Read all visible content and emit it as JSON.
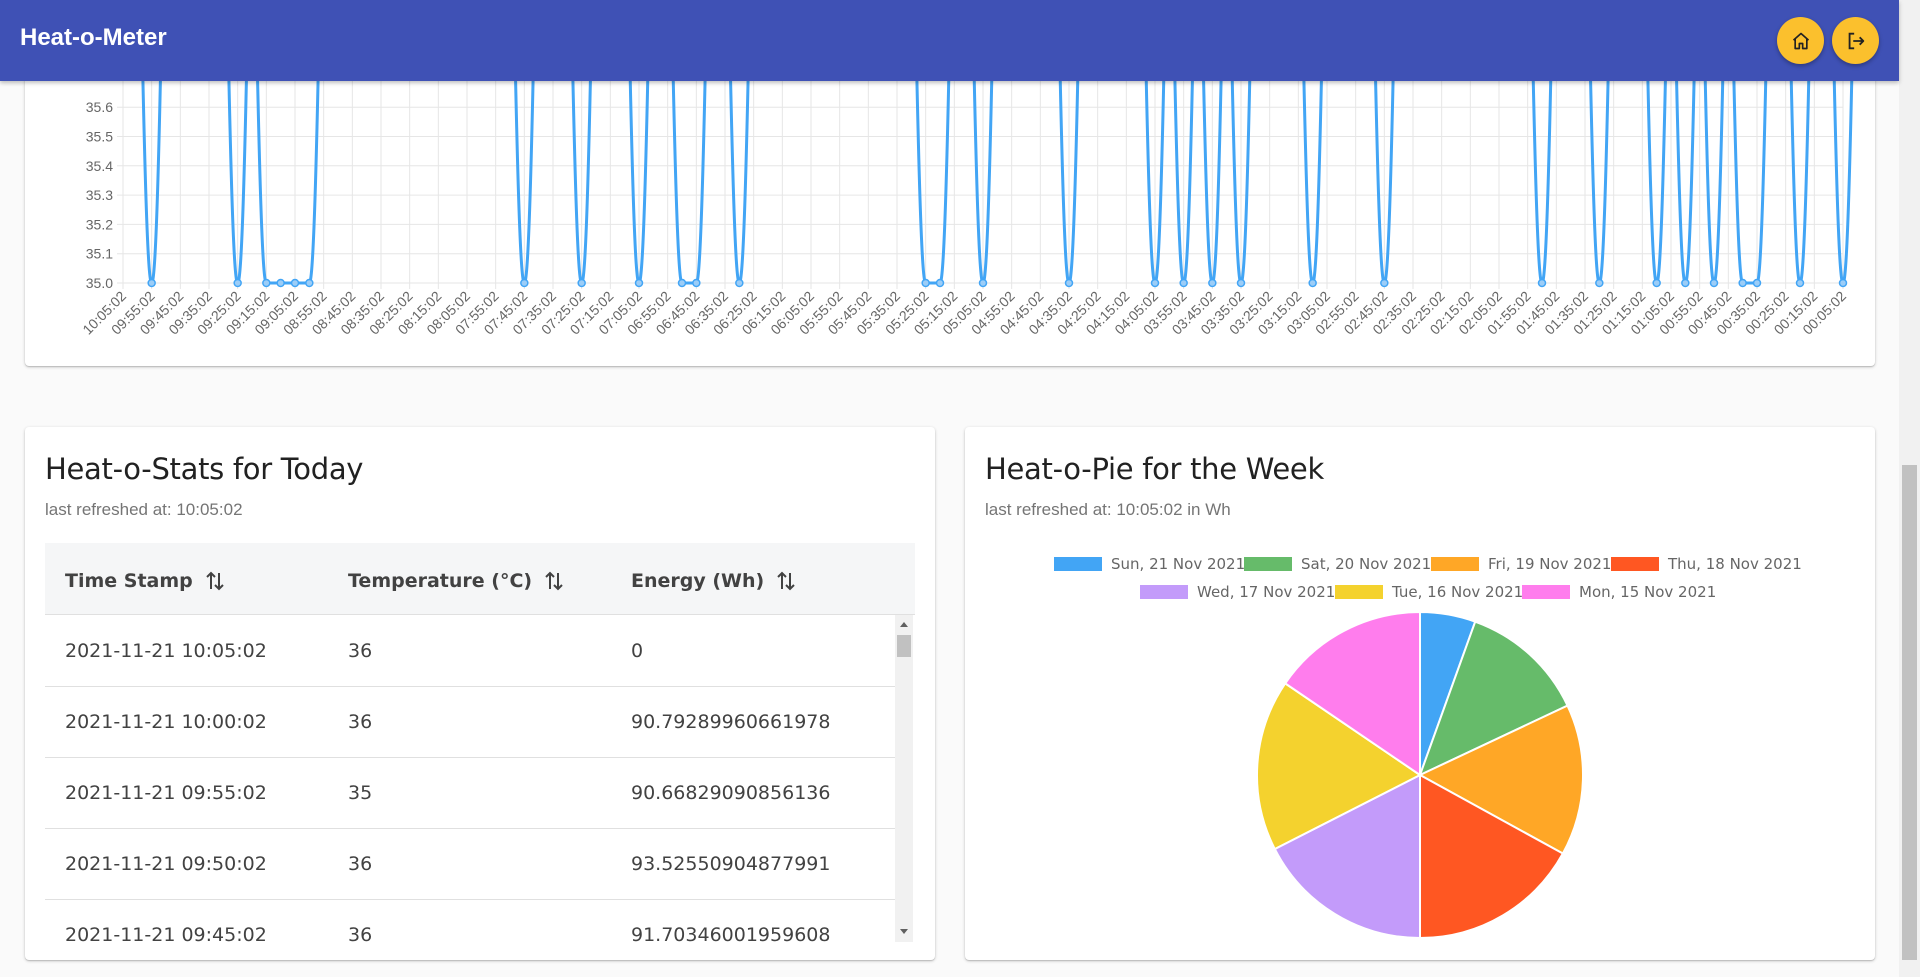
{
  "app": {
    "title": "Heat-o-Meter"
  },
  "toolbar": {
    "home_icon": "home-icon",
    "logout_icon": "logout-icon"
  },
  "line_chart": {
    "chart_data": {
      "type": "line",
      "y_ticks": [
        "35.6",
        "35.5",
        "35.4",
        "35.3",
        "35.2",
        "35.1",
        "35.0"
      ],
      "x_ticks": [
        "10:05:02",
        "09:55:02",
        "09:45:02",
        "09:35:02",
        "09:25:02",
        "09:15:02",
        "09:05:02",
        "08:55:02",
        "08:45:02",
        "08:35:02",
        "08:25:02",
        "08:15:02",
        "08:05:02",
        "07:55:02",
        "07:45:02",
        "07:35:02",
        "07:25:02",
        "07:15:02",
        "07:05:02",
        "06:55:02",
        "06:45:02",
        "06:35:02",
        "06:25:02",
        "06:15:02",
        "06:05:02",
        "05:55:02",
        "05:45:02",
        "05:35:02",
        "05:25:02",
        "05:15:02",
        "05:05:02",
        "04:55:02",
        "04:45:02",
        "04:35:02",
        "04:25:02",
        "04:15:02",
        "04:05:02",
        "03:55:02",
        "03:45:02",
        "03:35:02",
        "03:25:02",
        "03:15:02",
        "03:05:02",
        "02:55:02",
        "02:45:02",
        "02:35:02",
        "02:25:02",
        "02:15:02",
        "02:05:02",
        "01:55:02",
        "01:45:02",
        "01:35:02",
        "01:25:02",
        "01:15:02",
        "01:05:02",
        "00:55:02",
        "00:45:02",
        "00:35:02",
        "00:25:02",
        "00:15:02",
        "00:05:02"
      ],
      "visible_y_range": [
        35.0,
        35.7
      ],
      "dip_value": 35.0,
      "dip_x_positions": [
        1.0,
        4.0,
        5.0,
        5.5,
        6.0,
        6.5,
        14.0,
        16.0,
        18.0,
        19.5,
        20.0,
        21.5,
        28.0,
        28.5,
        30.0,
        33.0,
        36.0,
        37.0,
        38.0,
        39.0,
        41.5,
        44.0,
        49.5,
        51.5,
        53.5,
        54.5,
        55.5,
        56.5,
        57.0,
        58.5,
        60.0
      ],
      "color": "#42a5f5",
      "grid": true
    }
  },
  "stats_card": {
    "title": "Heat-o-Stats for Today",
    "subtitle": "last refreshed at: 10:05:02",
    "columns": [
      "Time Stamp",
      "Temperature (°C)",
      "Energy (Wh)"
    ],
    "rows": [
      [
        "2021-11-21 10:05:02",
        "36",
        "0"
      ],
      [
        "2021-11-21 10:00:02",
        "36",
        "90.79289960661978"
      ],
      [
        "2021-11-21 09:55:02",
        "35",
        "90.66829090856136"
      ],
      [
        "2021-11-21 09:50:02",
        "36",
        "93.52550904877991"
      ],
      [
        "2021-11-21 09:45:02",
        "36",
        "91.70346001959608"
      ]
    ]
  },
  "pie_card": {
    "title": "Heat-o-Pie for the Week",
    "subtitle": "last refreshed at: 10:05:02 in Wh",
    "chart_data": {
      "type": "pie",
      "labels": [
        "Sun, 21 Nov 2021",
        "Sat, 20 Nov 2021",
        "Fri, 19 Nov 2021",
        "Thu, 18 Nov 2021",
        "Wed, 17 Nov 2021",
        "Tue, 16 Nov 2021",
        "Mon, 15 Nov 2021"
      ],
      "values": [
        5.5,
        12.5,
        15.0,
        17.0,
        17.5,
        17.0,
        15.5
      ],
      "colors": [
        "#42a5f5",
        "#66bb6a",
        "#ffa726",
        "#ff5722",
        "#c39bfa",
        "#f4d22e",
        "#ff7ded"
      ],
      "legend": "top"
    }
  }
}
